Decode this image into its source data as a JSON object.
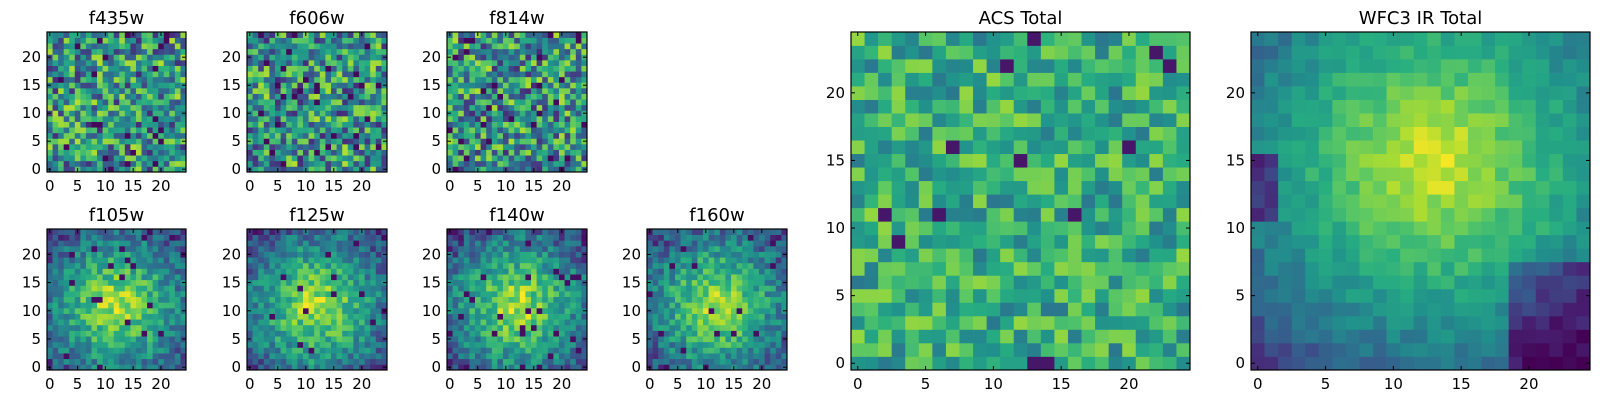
{
  "chart_data": {
    "type": "heatmap",
    "figure": "3x3 heatmap panel grid",
    "colormap": "viridis",
    "grid": false,
    "grid_size": [
      25,
      25
    ],
    "xlim": [
      -0.5,
      24.5
    ],
    "ylim": [
      -0.5,
      24.5
    ],
    "panels": [
      {
        "id": "f435w",
        "title": "f435w",
        "xticks": [
          "0",
          "5",
          "10",
          "15",
          "20"
        ],
        "yticks": [
          "0",
          "5",
          "10",
          "15",
          "20"
        ],
        "pattern": "noise",
        "seed": 11
      },
      {
        "id": "f606w",
        "title": "f606w",
        "xticks": [
          "0",
          "5",
          "10",
          "15",
          "20"
        ],
        "yticks": [
          "0",
          "5",
          "10",
          "15",
          "20"
        ],
        "pattern": "noise",
        "seed": 23
      },
      {
        "id": "f814w",
        "title": "f814w",
        "xticks": [
          "0",
          "5",
          "10",
          "15",
          "20"
        ],
        "yticks": [
          "0",
          "5",
          "10",
          "15",
          "20"
        ],
        "pattern": "noise",
        "seed": 37
      },
      {
        "id": "f105w",
        "title": "f105w",
        "xticks": [
          "0",
          "5",
          "10",
          "15",
          "20"
        ],
        "yticks": [
          "0",
          "5",
          "10",
          "15",
          "20"
        ],
        "pattern": "blob",
        "seed": 41
      },
      {
        "id": "f125w",
        "title": "f125w",
        "xticks": [
          "0",
          "5",
          "10",
          "15",
          "20"
        ],
        "yticks": [
          "0",
          "5",
          "10",
          "15",
          "20"
        ],
        "pattern": "blob",
        "seed": 53
      },
      {
        "id": "f140w",
        "title": "f140w",
        "xticks": [
          "0",
          "5",
          "10",
          "15",
          "20"
        ],
        "yticks": [
          "0",
          "5",
          "10",
          "15",
          "20"
        ],
        "pattern": "blob",
        "seed": 67
      },
      {
        "id": "f160w",
        "title": "f160w",
        "xticks": [
          "0",
          "5",
          "10",
          "15",
          "20"
        ],
        "yticks": [
          "0",
          "5",
          "10",
          "15",
          "20"
        ],
        "pattern": "blob",
        "seed": 79
      },
      {
        "id": "acs-total",
        "title": "ACS Total",
        "xticks": [
          "0",
          "5",
          "10",
          "15",
          "20"
        ],
        "yticks": [
          "0",
          "5",
          "10",
          "15",
          "20"
        ],
        "pattern": "acs",
        "seed": 97
      },
      {
        "id": "wfc3-ir-total",
        "title": "WFC3 IR Total",
        "xticks": [
          "0",
          "5",
          "10",
          "15",
          "20"
        ],
        "yticks": [
          "0",
          "5",
          "10",
          "15",
          "20"
        ],
        "pattern": "ir",
        "seed": 131
      }
    ]
  }
}
